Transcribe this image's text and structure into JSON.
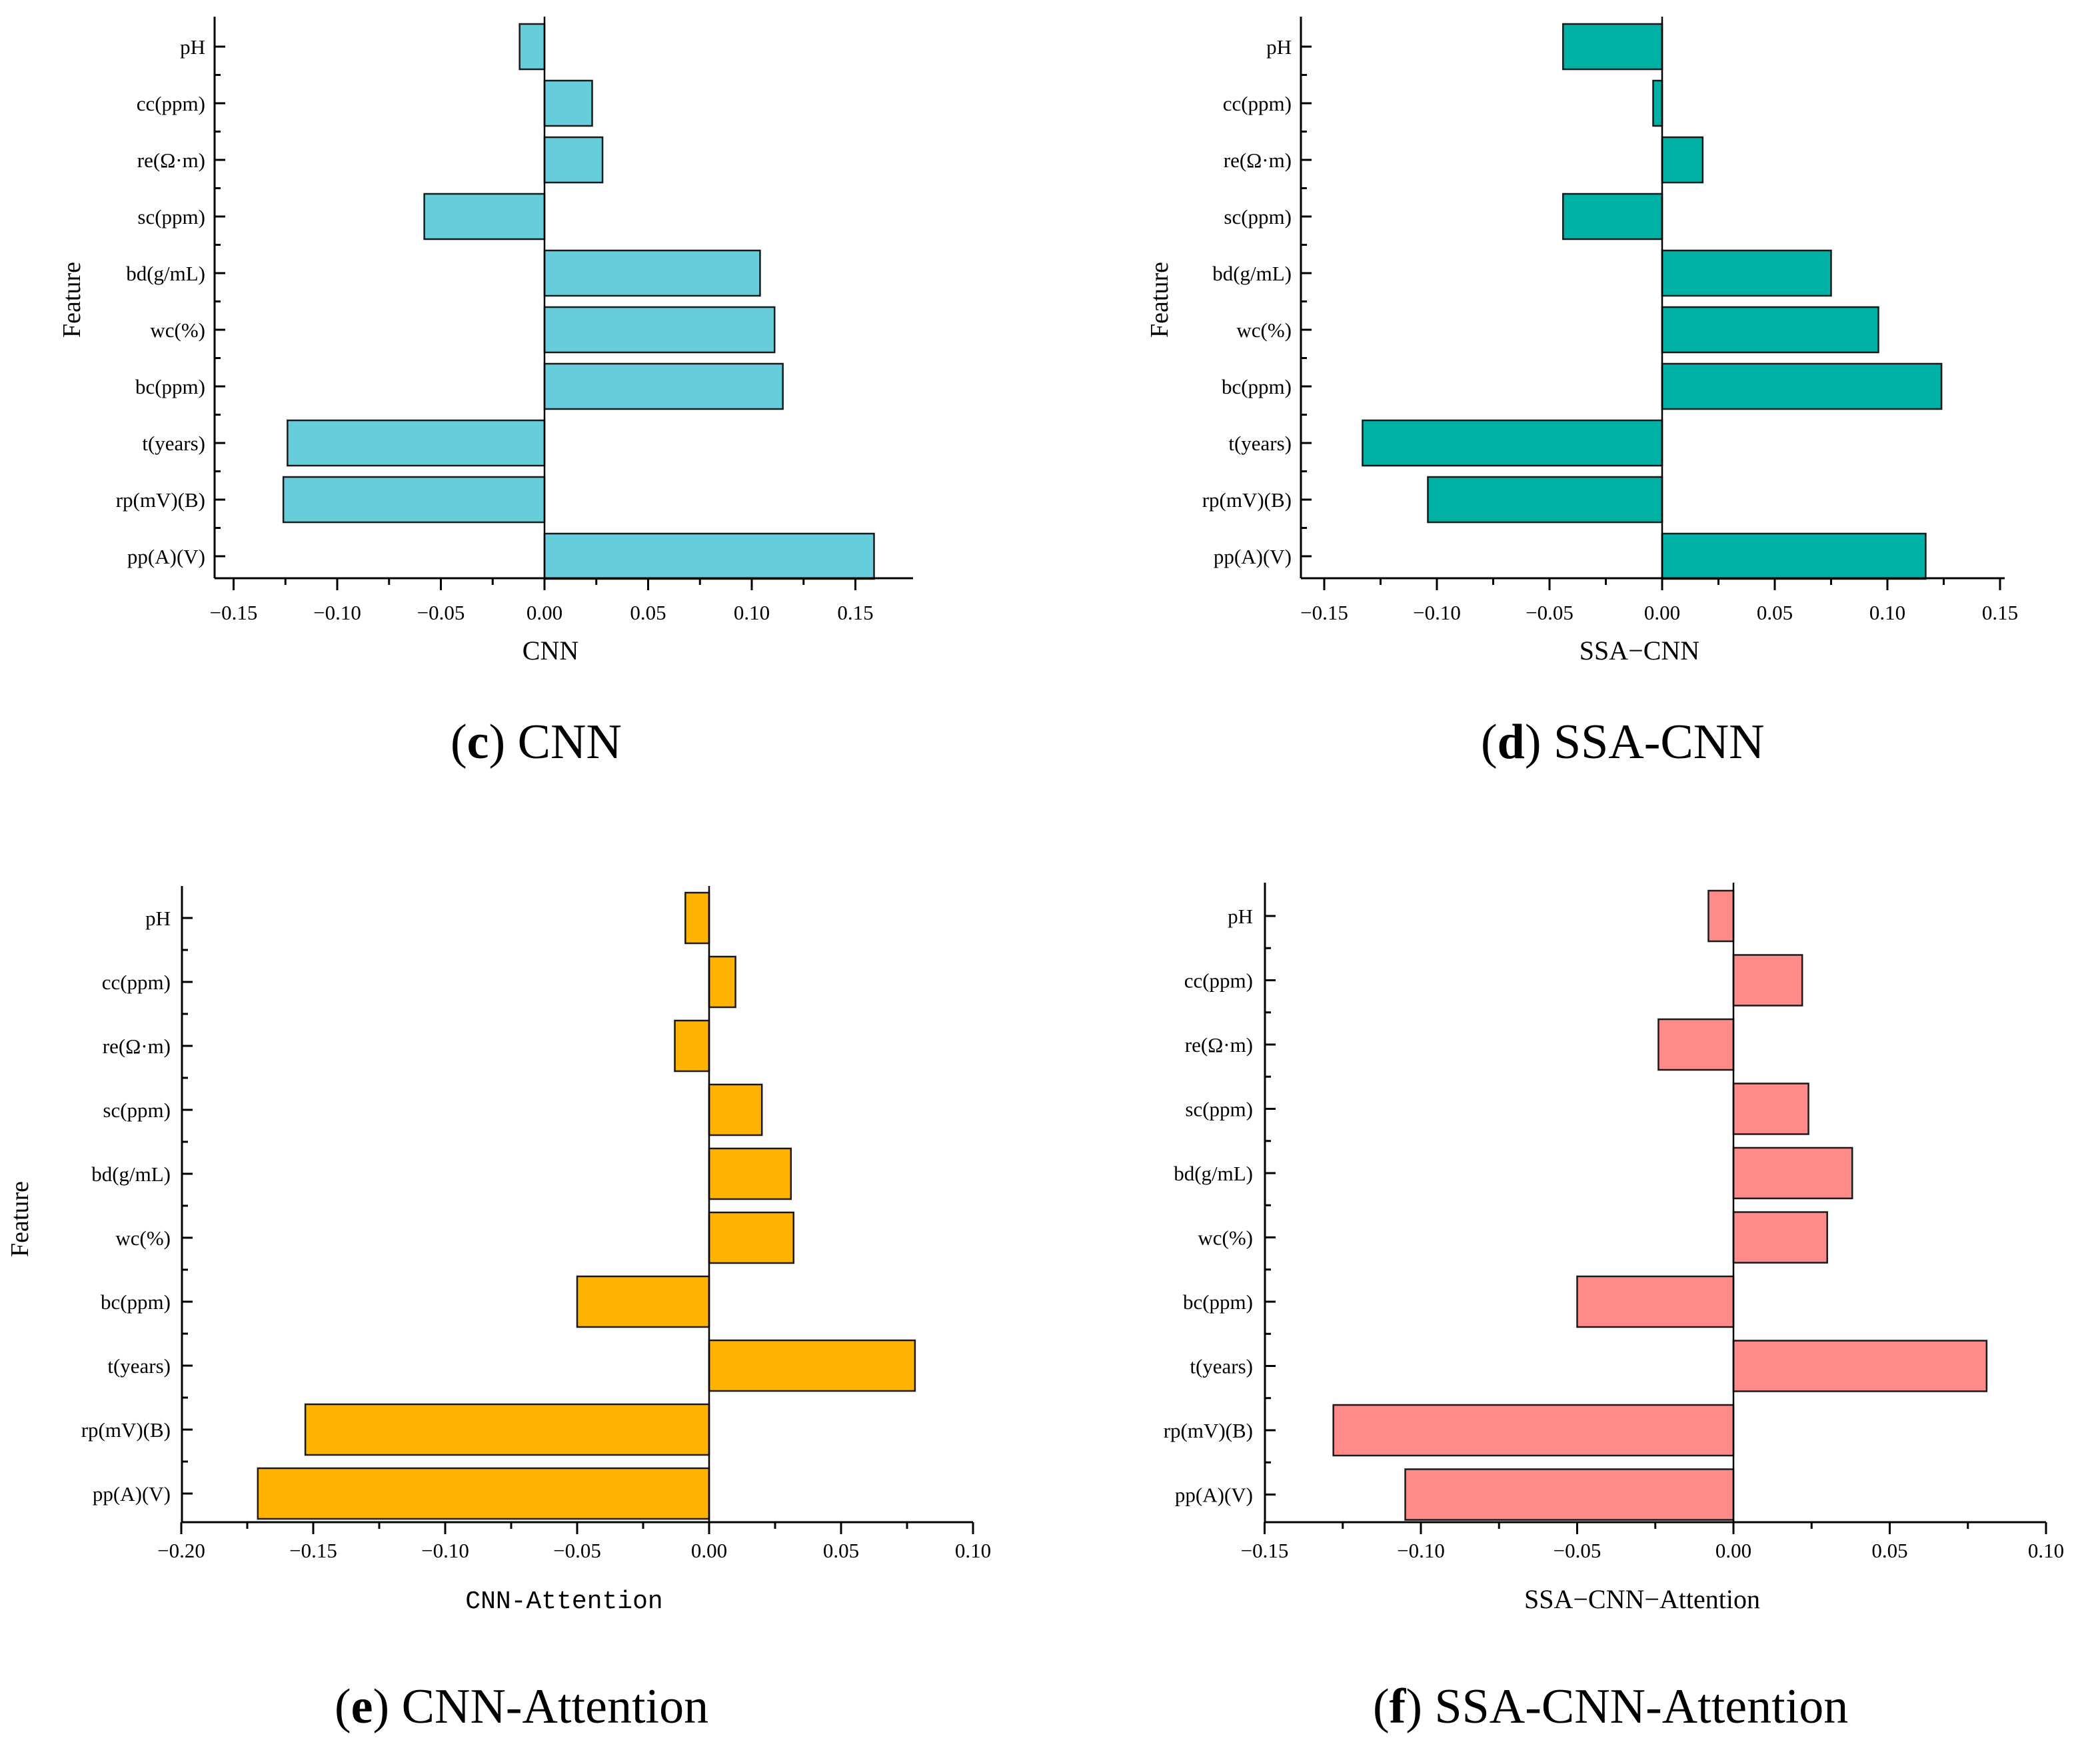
{
  "chart_data": [
    {
      "type": "bar",
      "orientation": "horizontal",
      "panel": "c",
      "caption_letter": "c",
      "caption_title": "CNN",
      "xlabel": "CNN",
      "ylabel": "Feature",
      "color": "#66CDDA",
      "xlim": [
        -0.16,
        0.18
      ],
      "xticks": [
        -0.15,
        -0.1,
        -0.05,
        0.0,
        0.05,
        0.1,
        0.15
      ],
      "xtick_labels": [
        "−0.15",
        "−0.10",
        "−0.05",
        "0.00",
        "0.05",
        "0.10",
        "0.15"
      ],
      "categories": [
        "pH",
        "cc(ppm)",
        "re(Ω·m)",
        "sc(ppm)",
        "bd(g/mL)",
        "wc(%)",
        "bc(ppm)",
        "t(years)",
        "rp(mV)(B)",
        "pp(A)(V)"
      ],
      "values": [
        -0.012,
        0.023,
        0.028,
        -0.058,
        0.104,
        0.111,
        0.115,
        -0.124,
        -0.126,
        0.159
      ]
    },
    {
      "type": "bar",
      "orientation": "horizontal",
      "panel": "d",
      "caption_letter": "d",
      "caption_title": "SSA-CNN",
      "xlabel": "SSA−CNN",
      "ylabel": "Feature",
      "color": "#00B2A5",
      "xlim": [
        -0.16,
        0.15
      ],
      "xticks": [
        -0.15,
        -0.1,
        -0.05,
        0.0,
        0.05,
        0.1,
        0.15
      ],
      "xtick_labels": [
        "−0.15",
        "−0.10",
        "−0.05",
        "0.00",
        "0.05",
        "0.10",
        "0.15"
      ],
      "categories": [
        "pH",
        "cc(ppm)",
        "re(Ω·m)",
        "sc(ppm)",
        "bd(g/mL)",
        "wc(%)",
        "bc(ppm)",
        "t(years)",
        "rp(mV)(B)",
        "pp(A)(V)"
      ],
      "values": [
        -0.044,
        -0.004,
        0.018,
        -0.044,
        0.075,
        0.096,
        0.124,
        -0.133,
        -0.104,
        0.117
      ]
    },
    {
      "type": "bar",
      "orientation": "horizontal",
      "panel": "e",
      "caption_letter": "e",
      "caption_title": "CNN-Attention",
      "xlabel": "CNN-Attention",
      "ylabel": "Feature",
      "color": "#FFB300",
      "xlim": [
        -0.2,
        0.1
      ],
      "xticks": [
        -0.2,
        -0.15,
        -0.1,
        -0.05,
        0.0,
        0.05,
        0.1
      ],
      "xtick_labels": [
        "−0.20",
        "−0.15",
        "−0.10",
        "−0.05",
        "0.00",
        "0.05",
        "0.10"
      ],
      "categories": [
        "pH",
        "cc(ppm)",
        "re(Ω·m)",
        "sc(ppm)",
        "bd(g/mL)",
        "wc(%)",
        "bc(ppm)",
        "t(years)",
        "rp(mV)(B)",
        "pp(A)(V)"
      ],
      "values": [
        -0.009,
        0.01,
        -0.013,
        0.02,
        0.031,
        0.032,
        -0.05,
        0.078,
        -0.153,
        -0.171
      ]
    },
    {
      "type": "bar",
      "orientation": "horizontal",
      "panel": "f",
      "caption_letter": "f",
      "caption_title": "SSA-CNN-Attention",
      "xlabel": "SSA−CNN−Attention",
      "ylabel": "",
      "color": "#FF8A8A",
      "xlim": [
        -0.15,
        0.1
      ],
      "xticks": [
        -0.15,
        -0.1,
        -0.05,
        0.0,
        0.05,
        0.1
      ],
      "xtick_labels": [
        "−0.15",
        "−0.10",
        "−0.05",
        "0.00",
        "0.05",
        "0.10"
      ],
      "categories": [
        "pH",
        "cc(ppm)",
        "re(Ω·m)",
        "sc(ppm)",
        "bd(g/mL)",
        "wc(%)",
        "bc(ppm)",
        "t(years)",
        "rp(mV)(B)",
        "pp(A)(V)"
      ],
      "values": [
        -0.008,
        0.022,
        -0.024,
        0.024,
        0.038,
        0.03,
        -0.05,
        0.081,
        -0.128,
        -0.105
      ]
    }
  ]
}
